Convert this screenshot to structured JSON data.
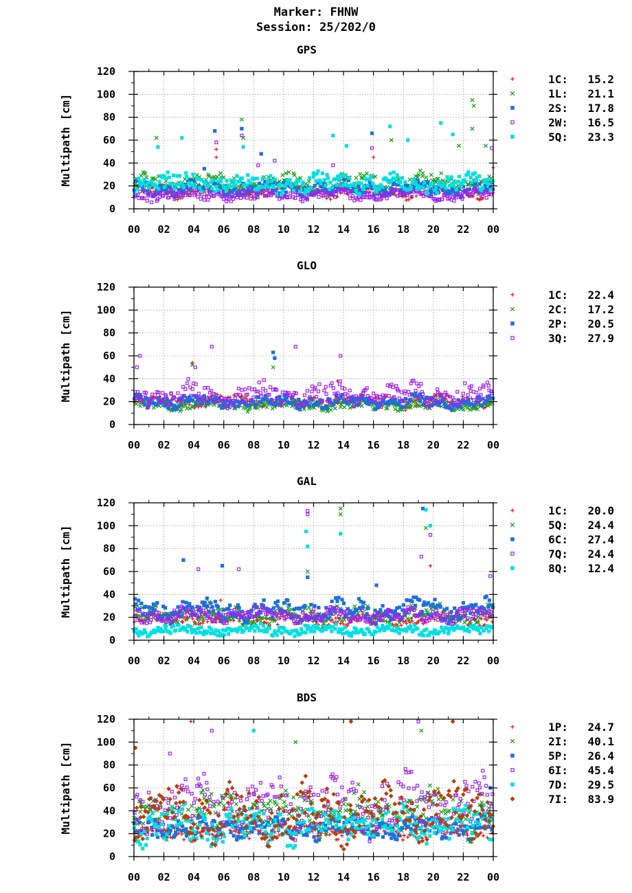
{
  "header": {
    "marker": "Marker: FHNW",
    "session": "Session: 25/202/0"
  },
  "chart_data": [
    {
      "type": "scatter",
      "title": "GPS",
      "ylabel": "Multipath [cm]",
      "xlabel": "",
      "ylim": [
        0,
        120
      ],
      "yticks": [
        "0",
        "20",
        "40",
        "60",
        "80",
        "100",
        "120"
      ],
      "xticks": [
        "00",
        "02",
        "04",
        "06",
        "08",
        "10",
        "12",
        "14",
        "16",
        "18",
        "20",
        "22",
        "00"
      ],
      "grid": true,
      "legend_position": "right",
      "series": [
        {
          "name": "1C",
          "value": "15.2",
          "marker": "plus",
          "color": "#e41a1c",
          "base": 15,
          "spread": 6,
          "spikes": [
            [
              5.5,
              52
            ],
            [
              5.5,
              45
            ],
            [
              16,
              45
            ],
            [
              24,
              36
            ]
          ]
        },
        {
          "name": "1L",
          "value": "21.1",
          "marker": "cross",
          "color": "#1aa01a",
          "base": 22,
          "spread": 10,
          "spikes": [
            [
              1.5,
              62
            ],
            [
              7.2,
              78
            ],
            [
              7.3,
              62
            ],
            [
              22.6,
              95
            ],
            [
              22.7,
              90
            ],
            [
              22.6,
              70
            ],
            [
              21.7,
              55
            ],
            [
              23.5,
              55
            ],
            [
              17.2,
              60
            ]
          ]
        },
        {
          "name": "2S",
          "value": "17.8",
          "marker": "square",
          "color": "#1e6fdc",
          "base": 18,
          "spread": 7,
          "spikes": [
            [
              5.4,
              68
            ],
            [
              15.9,
              66
            ],
            [
              7.2,
              70
            ],
            [
              4.7,
              35
            ],
            [
              8.5,
              48
            ]
          ]
        },
        {
          "name": "2W",
          "value": "16.5",
          "marker": "opensquare",
          "color": "#a020f0",
          "base": 12,
          "spread": 5,
          "spikes": [
            [
              5.5,
              58
            ],
            [
              15.9,
              53
            ],
            [
              7.2,
              64
            ],
            [
              8.3,
              38
            ],
            [
              9.4,
              42
            ],
            [
              13.3,
              38
            ],
            [
              23.9,
              53
            ]
          ]
        },
        {
          "name": "5Q",
          "value": "23.3",
          "marker": "square",
          "color": "#00e0e0",
          "base": 22,
          "spread": 9,
          "spikes": [
            [
              3.2,
              62
            ],
            [
              13.3,
              64
            ],
            [
              17.1,
              72
            ],
            [
              20.5,
              75
            ],
            [
              21.3,
              65
            ],
            [
              18.3,
              60
            ],
            [
              1.6,
              54
            ],
            [
              7.3,
              54
            ],
            [
              14.2,
              55
            ]
          ]
        }
      ]
    },
    {
      "type": "scatter",
      "title": "GLO",
      "ylabel": "Multipath [cm]",
      "xlabel": "",
      "ylim": [
        0,
        120
      ],
      "yticks": [
        "0",
        "20",
        "40",
        "60",
        "80",
        "100",
        "120"
      ],
      "xticks": [
        "00",
        "02",
        "04",
        "06",
        "08",
        "10",
        "12",
        "14",
        "16",
        "18",
        "20",
        "22",
        "00"
      ],
      "grid": true,
      "legend_position": "right",
      "series": [
        {
          "name": "1C",
          "value": "22.4",
          "marker": "plus",
          "color": "#e41a1c",
          "base": 20,
          "spread": 6,
          "spikes": [
            [
              3.9,
              54
            ],
            [
              13.6,
              38
            ],
            [
              2.7,
              24
            ]
          ]
        },
        {
          "name": "2C",
          "value": "17.2",
          "marker": "cross",
          "color": "#1aa01a",
          "base": 17,
          "spread": 5,
          "spikes": [
            [
              3.9,
              52
            ],
            [
              9.3,
              50
            ]
          ]
        },
        {
          "name": "2P",
          "value": "20.5",
          "marker": "square",
          "color": "#1e6fdc",
          "base": 20,
          "spread": 6,
          "spikes": [
            [
              9.3,
              63
            ],
            [
              9.4,
              58
            ]
          ]
        },
        {
          "name": "3Q",
          "value": "27.9",
          "marker": "opensquare",
          "color": "#a020f0",
          "base": 26,
          "spread": 11,
          "spikes": [
            [
              0.4,
              60
            ],
            [
              5.2,
              68
            ],
            [
              10.8,
              68
            ],
            [
              13.8,
              60
            ],
            [
              4.1,
              50
            ],
            [
              0.2,
              50
            ]
          ]
        }
      ]
    },
    {
      "type": "scatter",
      "title": "GAL",
      "ylabel": "Multipath [cm]",
      "xlabel": "",
      "ylim": [
        0,
        120
      ],
      "yticks": [
        "0",
        "20",
        "40",
        "60",
        "80",
        "100",
        "120"
      ],
      "xticks": [
        "00",
        "02",
        "04",
        "06",
        "08",
        "10",
        "12",
        "14",
        "16",
        "18",
        "20",
        "22",
        "00"
      ],
      "grid": true,
      "legend_position": "right",
      "series": [
        {
          "name": "1C",
          "value": "20.0",
          "marker": "plus",
          "color": "#e41a1c",
          "base": 18,
          "spread": 6,
          "spikes": [
            [
              19.8,
              65
            ],
            [
              5.8,
              35
            ]
          ]
        },
        {
          "name": "5Q",
          "value": "24.4",
          "marker": "cross",
          "color": "#1aa01a",
          "base": 22,
          "spread": 9,
          "spikes": [
            [
              13.8,
              115
            ],
            [
              13.8,
              110
            ],
            [
              19.5,
              98
            ],
            [
              11.6,
              60
            ]
          ]
        },
        {
          "name": "6C",
          "value": "27.4",
          "marker": "square",
          "color": "#1e6fdc",
          "base": 26,
          "spread": 10,
          "spikes": [
            [
              3.3,
              70
            ],
            [
              19.3,
              115
            ],
            [
              11.6,
              55
            ],
            [
              5.9,
              65
            ],
            [
              16.2,
              48
            ]
          ]
        },
        {
          "name": "7Q",
          "value": "24.4",
          "marker": "opensquare",
          "color": "#a020f0",
          "base": 22,
          "spread": 7,
          "spikes": [
            [
              11.6,
              113
            ],
            [
              11.6,
              110
            ],
            [
              19.8,
              92
            ],
            [
              4.3,
              62
            ],
            [
              7.0,
              62
            ],
            [
              23.8,
              56
            ],
            [
              19.2,
              73
            ]
          ]
        },
        {
          "name": "8Q",
          "value": "12.4",
          "marker": "square",
          "color": "#00e0e0",
          "base": 9,
          "spread": 5,
          "spikes": [
            [
              11.5,
              95
            ],
            [
              13.8,
              93
            ],
            [
              19.5,
              114
            ],
            [
              19.8,
              100
            ],
            [
              11.6,
              82
            ]
          ]
        }
      ]
    },
    {
      "type": "scatter",
      "title": "BDS",
      "ylabel": "Multipath [cm]",
      "xlabel": "",
      "ylim": [
        0,
        120
      ],
      "yticks": [
        "0",
        "20",
        "40",
        "60",
        "80",
        "100",
        "120"
      ],
      "xticks": [
        "00",
        "02",
        "04",
        "06",
        "08",
        "10",
        "12",
        "14",
        "16",
        "18",
        "20",
        "22",
        "00"
      ],
      "grid": true,
      "legend_position": "right",
      "series": [
        {
          "name": "1P",
          "value": "24.7",
          "marker": "plus",
          "color": "#e41a1c",
          "base": 22,
          "spread": 8,
          "spikes": [
            [
              3.8,
              118
            ]
          ]
        },
        {
          "name": "2I",
          "value": "40.1",
          "marker": "cross",
          "color": "#1aa01a",
          "base": 38,
          "spread": 20,
          "spikes": [
            [
              19.2,
              110
            ],
            [
              10.8,
              100
            ]
          ]
        },
        {
          "name": "5P",
          "value": "26.4",
          "marker": "square",
          "color": "#1e6fdc",
          "base": 25,
          "spread": 10,
          "spikes": [
            [
              23.8,
              60
            ]
          ]
        },
        {
          "name": "6I",
          "value": "45.4",
          "marker": "opensquare",
          "color": "#a020f0",
          "base": 45,
          "spread": 26,
          "spikes": [
            [
              19.0,
              118
            ],
            [
              2.4,
              90
            ],
            [
              5.2,
              110
            ]
          ]
        },
        {
          "name": "7D",
          "value": "29.5",
          "marker": "square",
          "color": "#00e0e0",
          "base": 28,
          "spread": 18,
          "spikes": [
            [
              8.0,
              110
            ]
          ]
        },
        {
          "name": "7I",
          "value": "83.9",
          "marker": "diamond",
          "color": "#b5400c",
          "base": 38,
          "spread": 26,
          "spikes": [
            [
              0.1,
              95
            ],
            [
              21.3,
              118
            ],
            [
              14.5,
              118
            ]
          ]
        }
      ]
    }
  ]
}
